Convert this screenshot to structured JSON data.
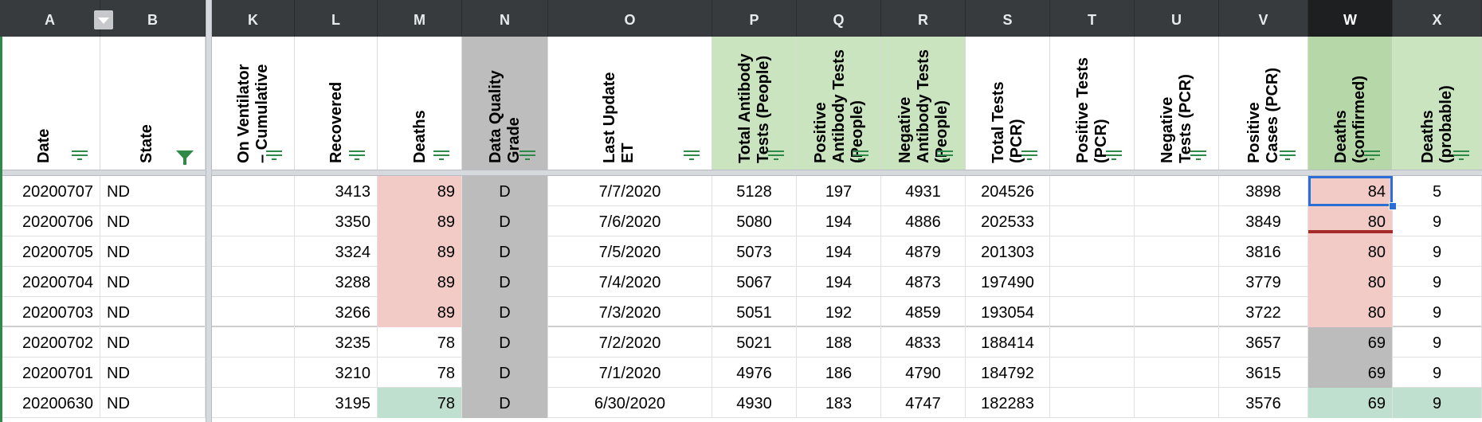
{
  "columns": [
    {
      "letter": "A",
      "title": [
        "Date"
      ],
      "filter": "lines"
    },
    {
      "letter": "B",
      "title": [
        "State"
      ],
      "filter": "funnel"
    },
    {
      "letter": "K",
      "title": [
        "On Ventilator",
        "– Cumulative"
      ],
      "filter": "lines"
    },
    {
      "letter": "L",
      "title": [
        "Recovered"
      ],
      "filter": "lines"
    },
    {
      "letter": "M",
      "title": [
        "Deaths"
      ],
      "filter": "lines"
    },
    {
      "letter": "N",
      "title": [
        "Data Quality",
        "Grade"
      ],
      "filter": "lines"
    },
    {
      "letter": "O",
      "title": [
        "Last Update",
        "ET"
      ],
      "filter": "lines"
    },
    {
      "letter": "P",
      "title": [
        "Total Antibody",
        "Tests (People)"
      ],
      "filter": "lines"
    },
    {
      "letter": "Q",
      "title": [
        "Positive",
        "Antibody Tests",
        "(People)"
      ],
      "filter": "lines"
    },
    {
      "letter": "R",
      "title": [
        "Negative",
        "Antibody Tests",
        "(People)"
      ],
      "filter": "lines"
    },
    {
      "letter": "S",
      "title": [
        "Total Tests",
        "(PCR)"
      ],
      "filter": "lines"
    },
    {
      "letter": "T",
      "title": [
        "Positive Tests",
        "(PCR)"
      ],
      "filter": "lines"
    },
    {
      "letter": "U",
      "title": [
        "Negative",
        "Tests (PCR)"
      ],
      "filter": "lines"
    },
    {
      "letter": "V",
      "title": [
        "Positive",
        "Cases (PCR)"
      ],
      "filter": "lines"
    },
    {
      "letter": "W",
      "title": [
        "Deaths",
        "(confirmed)"
      ],
      "filter": "lines"
    },
    {
      "letter": "X",
      "title": [
        "Deaths",
        "(probable)"
      ],
      "filter": "lines"
    }
  ],
  "rows": [
    {
      "date": "20200707",
      "state": "ND",
      "vent": "",
      "recovered": "3413",
      "deaths": "89",
      "grade": "D",
      "last_update": "7/7/2020",
      "total_ab": "5128",
      "pos_ab": "197",
      "neg_ab": "4931",
      "total_pcr": "204526",
      "pos_pcr": "",
      "neg_pcr": "",
      "pos_cases": "3898",
      "deaths_conf": "84",
      "deaths_prob": "5"
    },
    {
      "date": "20200706",
      "state": "ND",
      "vent": "",
      "recovered": "3350",
      "deaths": "89",
      "grade": "D",
      "last_update": "7/6/2020",
      "total_ab": "5080",
      "pos_ab": "194",
      "neg_ab": "4886",
      "total_pcr": "202533",
      "pos_pcr": "",
      "neg_pcr": "",
      "pos_cases": "3849",
      "deaths_conf": "80",
      "deaths_prob": "9"
    },
    {
      "date": "20200705",
      "state": "ND",
      "vent": "",
      "recovered": "3324",
      "deaths": "89",
      "grade": "D",
      "last_update": "7/5/2020",
      "total_ab": "5073",
      "pos_ab": "194",
      "neg_ab": "4879",
      "total_pcr": "201303",
      "pos_pcr": "",
      "neg_pcr": "",
      "pos_cases": "3816",
      "deaths_conf": "80",
      "deaths_prob": "9"
    },
    {
      "date": "20200704",
      "state": "ND",
      "vent": "",
      "recovered": "3288",
      "deaths": "89",
      "grade": "D",
      "last_update": "7/4/2020",
      "total_ab": "5067",
      "pos_ab": "194",
      "neg_ab": "4873",
      "total_pcr": "197490",
      "pos_pcr": "",
      "neg_pcr": "",
      "pos_cases": "3779",
      "deaths_conf": "80",
      "deaths_prob": "9"
    },
    {
      "date": "20200703",
      "state": "ND",
      "vent": "",
      "recovered": "3266",
      "deaths": "89",
      "grade": "D",
      "last_update": "7/3/2020",
      "total_ab": "5051",
      "pos_ab": "192",
      "neg_ab": "4859",
      "total_pcr": "193054",
      "pos_pcr": "",
      "neg_pcr": "",
      "pos_cases": "3722",
      "deaths_conf": "80",
      "deaths_prob": "9"
    },
    {
      "date": "20200702",
      "state": "ND",
      "vent": "",
      "recovered": "3235",
      "deaths": "78",
      "grade": "D",
      "last_update": "7/2/2020",
      "total_ab": "5021",
      "pos_ab": "188",
      "neg_ab": "4833",
      "total_pcr": "188414",
      "pos_pcr": "",
      "neg_pcr": "",
      "pos_cases": "3657",
      "deaths_conf": "69",
      "deaths_prob": "9"
    },
    {
      "date": "20200701",
      "state": "ND",
      "vent": "",
      "recovered": "3210",
      "deaths": "78",
      "grade": "D",
      "last_update": "7/1/2020",
      "total_ab": "4976",
      "pos_ab": "186",
      "neg_ab": "4790",
      "total_pcr": "184792",
      "pos_pcr": "",
      "neg_pcr": "",
      "pos_cases": "3615",
      "deaths_conf": "69",
      "deaths_prob": "9"
    },
    {
      "date": "20200630",
      "state": "ND",
      "vent": "",
      "recovered": "3195",
      "deaths": "78",
      "grade": "D",
      "last_update": "6/30/2020",
      "total_ab": "4930",
      "pos_ab": "183",
      "neg_ab": "4747",
      "total_pcr": "182283",
      "pos_pcr": "",
      "neg_pcr": "",
      "pos_cases": "3576",
      "deaths_conf": "69",
      "deaths_prob": "9"
    }
  ],
  "highlights": {
    "deaths": [
      "pink",
      "pink",
      "pink",
      "pink",
      "pink",
      "",
      "",
      "mint"
    ],
    "deaths_conf": [
      "pink",
      "pink",
      "pink",
      "pink",
      "pink",
      "grey",
      "grey",
      "mint"
    ],
    "deaths_prob": [
      "",
      "",
      "",
      "",
      "",
      "",
      "",
      "mint"
    ]
  },
  "colors": {
    "header_bar": "#383b3e",
    "green_header": "#c9e4bf",
    "grade_gray": "#bdbdbd",
    "pink_fill": "#f3cbc6",
    "mint_fill": "#bfe0cf",
    "selection_blue": "#2a6fd6",
    "filter_green": "#2f8a4a"
  },
  "selected_cell": "W"
}
